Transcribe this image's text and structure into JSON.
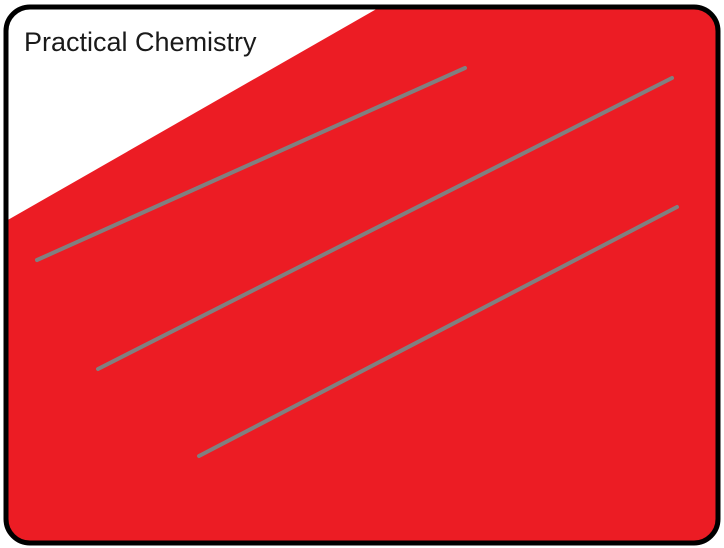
{
  "title": "Practical Chemistry",
  "colors": {
    "fill": "#ec1c24",
    "frame": "#000000",
    "stripe": "#808080",
    "background": "#ffffff"
  },
  "decoration": "red card with three diagonal grey lines"
}
